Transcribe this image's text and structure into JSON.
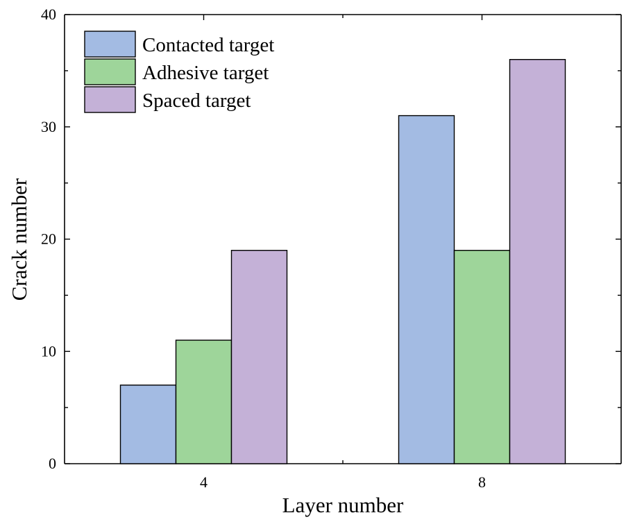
{
  "chart_data": {
    "type": "bar",
    "title": "",
    "xlabel": "Layer number",
    "ylabel": "Crack number",
    "categories": [
      "4",
      "8"
    ],
    "ylim": [
      0,
      40
    ],
    "yticks": [
      0,
      10,
      20,
      30,
      40
    ],
    "grid": false,
    "legend_position": "top-left",
    "series": [
      {
        "name": "Contacted target",
        "color": "#a3bbe3",
        "values": [
          7,
          31
        ]
      },
      {
        "name": "Adhesive target",
        "color": "#9ed59a",
        "values": [
          11,
          19
        ]
      },
      {
        "name": "Spaced target",
        "color": "#c4b1d7",
        "values": [
          19,
          36
        ]
      }
    ]
  }
}
